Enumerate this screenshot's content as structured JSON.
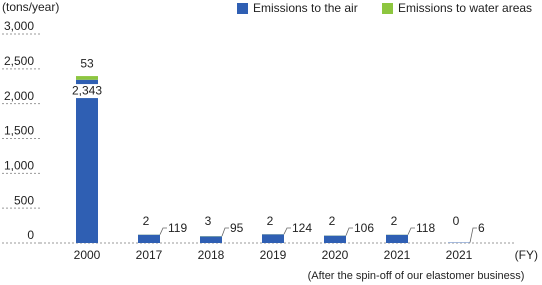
{
  "chart_data": {
    "type": "stacked_bar",
    "y_axis_label": "(tons/year)",
    "x_axis_label": "(FY)",
    "annotation": "(After the spin-off of our elastomer business)",
    "categories": [
      "2000",
      "2017",
      "2018",
      "2019",
      "2020",
      "2021",
      "2021"
    ],
    "series": [
      {
        "name": "Emissions to the air",
        "color": "#2f5fb3",
        "values": [
          2343,
          119,
          95,
          124,
          106,
          118,
          6
        ],
        "value_labels": [
          "2,343",
          "119",
          "95",
          "124",
          "106",
          "118",
          "6"
        ]
      },
      {
        "name": "Emissions to water areas",
        "color": "#8dc63f",
        "values": [
          53,
          2,
          3,
          2,
          2,
          2,
          0
        ]
      }
    ],
    "ylim": [
      0,
      3000
    ],
    "yticks": [
      {
        "value": 0,
        "label": "0"
      },
      {
        "value": 500,
        "label": "500"
      },
      {
        "value": 1000,
        "label": "1,000"
      },
      {
        "value": 1500,
        "label": "1,500"
      },
      {
        "value": 2000,
        "label": "2,000"
      },
      {
        "value": 2500,
        "label": "2,500"
      },
      {
        "value": 3000,
        "label": "3,000"
      }
    ]
  }
}
